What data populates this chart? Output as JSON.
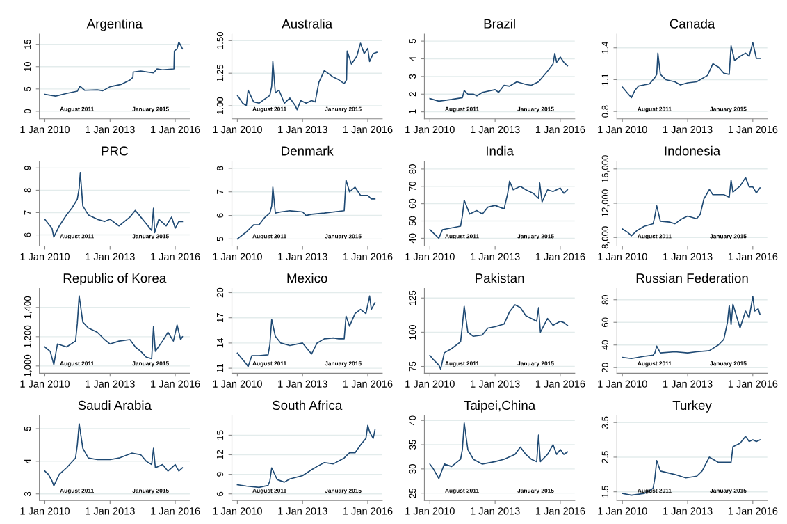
{
  "chart_data": [
    {
      "type": "line",
      "title": "Argentina",
      "color": "#1f4a74",
      "grid": "y",
      "xlim": [
        "2009-10-01",
        "2016-09-01"
      ],
      "xticks": [
        {
          "value": "2010-01-01",
          "label": "1 Jan 2010"
        },
        {
          "value": "2013-01-01",
          "label": "1 Jan 2013"
        },
        {
          "value": "2016-01-01",
          "label": "1 Jan 2016"
        }
      ],
      "ylim": [
        -1.7,
        17.3
      ],
      "yticks": [
        0,
        5,
        10,
        15
      ],
      "annotations": [
        "August 2011",
        "January 2015"
      ],
      "x": [
        "2010-01",
        "2010-07",
        "2011-01",
        "2011-07",
        "2011-08-15",
        "2011-11",
        "2012-06",
        "2012-09",
        "2013-01",
        "2013-07",
        "2013-12",
        "2014-01-20",
        "2014-01-25",
        "2014-06",
        "2015-01",
        "2015-03",
        "2015-06",
        "2015-12-10",
        "2015-12-17",
        "2016-02",
        "2016-03",
        "2016-04",
        "2016-05"
      ],
      "values": [
        3.8,
        3.4,
        4.0,
        4.5,
        5.6,
        4.7,
        4.8,
        4.6,
        5.5,
        6.0,
        7.0,
        7.6,
        8.8,
        9.0,
        8.6,
        9.5,
        9.3,
        9.5,
        13.5,
        14.0,
        15.5,
        14.8,
        14.0
      ]
    },
    {
      "type": "line",
      "title": "Australia",
      "color": "#1f4a74",
      "grid": "y",
      "xlim": [
        "2009-10-01",
        "2016-09-01"
      ],
      "xticks": [
        {
          "value": "2010-01-01",
          "label": "1 Jan 2010"
        },
        {
          "value": "2013-01-01",
          "label": "1 Jan 2013"
        },
        {
          "value": "2016-01-01",
          "label": "1 Jan 2016"
        }
      ],
      "ylim": [
        0.9,
        1.55
      ],
      "yticks": [
        {
          "value": 1.0,
          "label": "1.00"
        },
        {
          "value": 1.25,
          "label": "1.25"
        },
        {
          "value": 1.5,
          "label": "1.50"
        }
      ],
      "annotations": [
        "August 2011",
        "January 2015"
      ],
      "x": [
        "2010-01",
        "2010-04",
        "2010-06",
        "2010-07",
        "2010-10",
        "2011-01",
        "2011-04",
        "2011-07",
        "2011-08",
        "2011-08-20",
        "2011-10",
        "2011-12",
        "2012-03",
        "2012-06",
        "2012-09",
        "2012-10",
        "2012-12",
        "2013-03",
        "2013-06",
        "2013-08",
        "2013-10",
        "2014-01",
        "2014-06",
        "2014-09",
        "2014-12",
        "2015-01-10",
        "2015-01-20",
        "2015-04",
        "2015-07",
        "2015-09",
        "2015-11",
        "2016-01",
        "2016-02",
        "2016-04",
        "2016-06"
      ],
      "values": [
        1.08,
        1.02,
        1.0,
        1.12,
        1.03,
        1.02,
        1.05,
        1.08,
        1.15,
        1.34,
        1.1,
        1.12,
        1.02,
        1.06,
        1.0,
        0.97,
        1.04,
        1.02,
        1.04,
        1.03,
        1.18,
        1.27,
        1.22,
        1.2,
        1.17,
        1.2,
        1.42,
        1.32,
        1.38,
        1.48,
        1.4,
        1.44,
        1.34,
        1.4,
        1.41
      ]
    },
    {
      "type": "line",
      "title": "Brazil",
      "color": "#1f4a74",
      "grid": "y",
      "xlim": [
        "2009-10-01",
        "2016-09-01"
      ],
      "xticks": [
        {
          "value": "2010-01-01",
          "label": "1 Jan 2010"
        },
        {
          "value": "2013-01-01",
          "label": "1 Jan 2013"
        },
        {
          "value": "2016-01-01",
          "label": "1 Jan 2016"
        }
      ],
      "ylim": [
        0.6,
        5.4
      ],
      "yticks": [
        1,
        2,
        3,
        4,
        5
      ],
      "annotations": [
        "August 2011",
        "January 2015"
      ],
      "x": [
        "2010-01",
        "2010-06",
        "2011-01",
        "2011-07",
        "2011-08",
        "2011-10",
        "2012-01",
        "2012-03",
        "2012-06",
        "2013-01",
        "2013-03",
        "2013-06",
        "2013-09",
        "2014-01",
        "2014-06",
        "2014-09",
        "2015-01",
        "2015-06",
        "2015-09",
        "2015-10",
        "2015-11",
        "2016-01",
        "2016-03",
        "2016-05"
      ],
      "values": [
        1.75,
        1.6,
        1.7,
        1.8,
        2.2,
        2.0,
        2.0,
        1.9,
        2.1,
        2.25,
        2.1,
        2.5,
        2.45,
        2.7,
        2.55,
        2.5,
        2.7,
        3.3,
        3.7,
        4.3,
        3.8,
        4.1,
        3.8,
        3.6
      ]
    },
    {
      "type": "line",
      "title": "Canada",
      "color": "#1f4a74",
      "grid": "y",
      "xlim": [
        "2009-10-01",
        "2016-09-01"
      ],
      "xticks": [
        {
          "value": "2010-01-01",
          "label": "1 Jan 2010"
        },
        {
          "value": "2013-01-01",
          "label": "1 Jan 2013"
        },
        {
          "value": "2016-01-01",
          "label": "1 Jan 2016"
        }
      ],
      "ylim": [
        0.73,
        1.53
      ],
      "yticks": [
        0.8,
        1.1,
        1.4
      ],
      "annotations": [
        "August 2011",
        "January 2015"
      ],
      "x": [
        "2010-01",
        "2010-04",
        "2010-06",
        "2010-08",
        "2010-10",
        "2011-01",
        "2011-04",
        "2011-07",
        "2011-08",
        "2011-08-20",
        "2011-10",
        "2012-01",
        "2012-06",
        "2012-09",
        "2013-01",
        "2013-06",
        "2013-12",
        "2014-03",
        "2014-06",
        "2014-09",
        "2014-12",
        "2015-01",
        "2015-03",
        "2015-06",
        "2015-09",
        "2015-11",
        "2016-01",
        "2016-03",
        "2016-05"
      ],
      "values": [
        1.03,
        0.97,
        0.93,
        1.0,
        1.04,
        1.05,
        1.06,
        1.12,
        1.15,
        1.35,
        1.15,
        1.1,
        1.08,
        1.05,
        1.07,
        1.08,
        1.14,
        1.25,
        1.22,
        1.16,
        1.15,
        1.42,
        1.28,
        1.32,
        1.35,
        1.32,
        1.45,
        1.3,
        1.3
      ]
    },
    {
      "type": "line",
      "title": "PRC",
      "color": "#1f4a74",
      "grid": "y",
      "xlim": [
        "2009-10-01",
        "2016-09-01"
      ],
      "xticks": [
        {
          "value": "2010-01-01",
          "label": "1 Jan 2010"
        },
        {
          "value": "2013-01-01",
          "label": "1 Jan 2013"
        },
        {
          "value": "2016-01-01",
          "label": "1 Jan 2016"
        }
      ],
      "ylim": [
        5.5,
        9.3
      ],
      "yticks": [
        6,
        7,
        8,
        9
      ],
      "annotations": [
        "August 2011",
        "January 2015"
      ],
      "x": [
        "2010-01",
        "2010-03",
        "2010-05",
        "2010-06",
        "2010-09",
        "2011-01",
        "2011-04",
        "2011-07",
        "2011-08",
        "2011-08-20",
        "2011-10",
        "2012-01",
        "2012-06",
        "2012-10",
        "2013-01",
        "2013-06",
        "2013-12",
        "2014-03",
        "2014-06",
        "2014-09",
        "2014-12",
        "2015-01",
        "2015-01-20",
        "2015-04",
        "2015-08",
        "2015-11",
        "2016-01",
        "2016-03",
        "2016-05"
      ],
      "values": [
        6.7,
        6.5,
        6.3,
        5.9,
        6.4,
        6.9,
        7.2,
        7.6,
        8.1,
        8.8,
        7.3,
        6.9,
        6.7,
        6.6,
        6.7,
        6.4,
        6.8,
        7.1,
        6.8,
        6.5,
        6.2,
        7.2,
        6.1,
        6.7,
        6.4,
        6.8,
        6.3,
        6.6,
        6.6
      ]
    },
    {
      "type": "line",
      "title": "Denmark",
      "color": "#1f4a74",
      "grid": "y",
      "xlim": [
        "2009-10-01",
        "2016-09-01"
      ],
      "xticks": [
        {
          "value": "2010-01-01",
          "label": "1 Jan 2010"
        },
        {
          "value": "2013-01-01",
          "label": "1 Jan 2013"
        },
        {
          "value": "2016-01-01",
          "label": "1 Jan 2016"
        }
      ],
      "ylim": [
        4.7,
        8.3
      ],
      "yticks": [
        5,
        6,
        7,
        8
      ],
      "annotations": [
        "August 2011",
        "January 2015"
      ],
      "x": [
        "2010-01",
        "2010-06",
        "2010-10",
        "2011-01",
        "2011-04",
        "2011-07",
        "2011-08",
        "2011-08-20",
        "2011-10",
        "2012-01",
        "2012-06",
        "2013-01",
        "2013-03",
        "2013-06",
        "2014-01",
        "2014-12",
        "2015-01",
        "2015-03",
        "2015-06",
        "2015-09",
        "2016-01",
        "2016-03",
        "2016-05"
      ],
      "values": [
        5.0,
        5.3,
        5.6,
        5.6,
        5.9,
        6.1,
        6.4,
        7.2,
        6.1,
        6.15,
        6.2,
        6.15,
        6.0,
        6.05,
        6.1,
        6.2,
        7.5,
        7.0,
        7.2,
        6.85,
        6.85,
        6.7,
        6.7
      ]
    },
    {
      "type": "line",
      "title": "India",
      "color": "#1f4a74",
      "grid": "y",
      "xlim": [
        "2009-10-01",
        "2016-09-01"
      ],
      "xticks": [
        {
          "value": "2010-01-01",
          "label": "1 Jan 2010"
        },
        {
          "value": "2013-01-01",
          "label": "1 Jan 2013"
        },
        {
          "value": "2016-01-01",
          "label": "1 Jan 2016"
        }
      ],
      "ylim": [
        35.5,
        84.5
      ],
      "yticks": [
        40,
        50,
        60,
        70,
        80
      ],
      "annotations": [
        "August 2011",
        "January 2015"
      ],
      "x": [
        "2010-01",
        "2010-04",
        "2010-06",
        "2010-08",
        "2011-01",
        "2011-06",
        "2011-07",
        "2011-08",
        "2011-11",
        "2012-03",
        "2012-06",
        "2012-09",
        "2013-01",
        "2013-06",
        "2013-08",
        "2013-09",
        "2013-11",
        "2014-03",
        "2014-06",
        "2014-10",
        "2015-01",
        "2015-01-20",
        "2015-03",
        "2015-06",
        "2015-09",
        "2016-01",
        "2016-03",
        "2016-05"
      ],
      "values": [
        45,
        42,
        40,
        45,
        46,
        47,
        53,
        62,
        54,
        56,
        54,
        58,
        59,
        57,
        66,
        73,
        68,
        70,
        68,
        66,
        63,
        72,
        61,
        68,
        67,
        69,
        66,
        68
      ]
    },
    {
      "type": "line",
      "title": "Indonesia",
      "color": "#1f4a74",
      "grid": "y",
      "xlim": [
        "2009-10-01",
        "2016-09-01"
      ],
      "xticks": [
        {
          "value": "2010-01-01",
          "label": "1 Jan 2010"
        },
        {
          "value": "2013-01-01",
          "label": "1 Jan 2013"
        },
        {
          "value": "2016-01-01",
          "label": "1 Jan 2016"
        }
      ],
      "ylim": [
        7000,
        16900
      ],
      "yticks": [
        {
          "value": 8000,
          "label": "8,000"
        },
        {
          "value": 12000,
          "label": "12,000"
        },
        {
          "value": 16000,
          "label": "16,000"
        }
      ],
      "annotations": [
        "August 2011",
        "January 2015"
      ],
      "x": [
        "2010-01",
        "2010-04",
        "2010-06",
        "2010-09",
        "2011-01",
        "2011-06",
        "2011-07",
        "2011-08",
        "2011-10",
        "2012-03",
        "2012-06",
        "2012-10",
        "2013-01",
        "2013-06",
        "2013-08",
        "2013-10",
        "2014-01",
        "2014-03",
        "2014-09",
        "2014-12",
        "2015-01",
        "2015-02",
        "2015-06",
        "2015-09",
        "2015-11",
        "2016-01",
        "2016-03",
        "2016-05"
      ],
      "values": [
        9000,
        8600,
        8200,
        8800,
        9300,
        9600,
        10500,
        11700,
        9900,
        9800,
        9600,
        10200,
        10500,
        10200,
        10700,
        12500,
        13600,
        13000,
        13000,
        12700,
        14700,
        13300,
        14000,
        15000,
        13900,
        13900,
        13200,
        13800
      ]
    },
    {
      "type": "line",
      "title": "Republic of Korea",
      "color": "#1f4a74",
      "grid": "y",
      "xlim": [
        "2009-10-01",
        "2016-09-01"
      ],
      "xticks": [
        {
          "value": "2010-01-01",
          "label": "1 Jan 2010"
        },
        {
          "value": "2013-01-01",
          "label": "1 Jan 2013"
        },
        {
          "value": "2016-01-01",
          "label": "1 Jan 2016"
        }
      ],
      "ylim": [
        950,
        1530
      ],
      "yticks": [
        {
          "value": 1000,
          "label": "1,000"
        },
        {
          "value": 1200,
          "label": "1,200"
        },
        {
          "value": 1400,
          "label": "1,400"
        }
      ],
      "annotations": [
        "August 2011",
        "January 2015"
      ],
      "x": [
        "2010-01",
        "2010-04",
        "2010-06",
        "2010-08",
        "2011-01",
        "2011-06",
        "2011-07",
        "2011-08",
        "2011-10",
        "2012-01",
        "2012-06",
        "2012-10",
        "2013-01",
        "2013-06",
        "2013-12",
        "2014-03",
        "2014-06",
        "2014-09",
        "2014-12",
        "2015-01",
        "2015-02",
        "2015-06",
        "2015-09",
        "2015-12",
        "2016-02",
        "2016-04",
        "2016-05"
      ],
      "values": [
        1130,
        1100,
        1010,
        1150,
        1130,
        1170,
        1290,
        1480,
        1300,
        1260,
        1230,
        1180,
        1150,
        1170,
        1180,
        1130,
        1100,
        1060,
        1050,
        1270,
        1100,
        1170,
        1230,
        1170,
        1280,
        1180,
        1200
      ]
    },
    {
      "type": "line",
      "title": "Mexico",
      "color": "#1f4a74",
      "grid": "y",
      "xlim": [
        "2009-10-01",
        "2016-09-01"
      ],
      "xticks": [
        {
          "value": "2010-01-01",
          "label": "1 Jan 2010"
        },
        {
          "value": "2013-01-01",
          "label": "1 Jan 2013"
        },
        {
          "value": "2016-01-01",
          "label": "1 Jan 2016"
        }
      ],
      "ylim": [
        10.4,
        20.5
      ],
      "yticks": [
        11,
        14,
        17,
        20
      ],
      "annotations": [
        "August 2011",
        "January 2015"
      ],
      "x": [
        "2010-01",
        "2010-03",
        "2010-06",
        "2010-07",
        "2010-09",
        "2011-01",
        "2011-06",
        "2011-07",
        "2011-08",
        "2011-10",
        "2012-01",
        "2012-06",
        "2013-01",
        "2013-04",
        "2013-06",
        "2013-09",
        "2014-01",
        "2014-06",
        "2014-09",
        "2014-12",
        "2015-01",
        "2015-03",
        "2015-06",
        "2015-09",
        "2015-12",
        "2016-02",
        "2016-03",
        "2016-05"
      ],
      "values": [
        12.8,
        12.3,
        11.5,
        11.2,
        12.5,
        12.5,
        12.6,
        13.8,
        16.8,
        14.8,
        14.0,
        13.7,
        14.0,
        13.2,
        12.7,
        14.0,
        14.5,
        14.6,
        14.5,
        14.5,
        17.2,
        16.0,
        17.5,
        18.0,
        17.5,
        19.6,
        18.0,
        18.8
      ]
    },
    {
      "type": "line",
      "title": "Pakistan",
      "color": "#1f4a74",
      "grid": "y",
      "xlim": [
        "2009-10-01",
        "2016-09-01"
      ],
      "xticks": [
        {
          "value": "2010-01-01",
          "label": "1 Jan 2010"
        },
        {
          "value": "2013-01-01",
          "label": "1 Jan 2013"
        },
        {
          "value": "2016-01-01",
          "label": "1 Jan 2016"
        }
      ],
      "ylim": [
        70,
        132
      ],
      "yticks": [
        75,
        100,
        125
      ],
      "annotations": [
        "August 2011",
        "January 2015"
      ],
      "x": [
        "2010-01",
        "2010-03",
        "2010-06",
        "2010-07",
        "2010-09",
        "2011-01",
        "2011-06",
        "2011-07",
        "2011-08",
        "2011-10",
        "2012-01",
        "2012-06",
        "2012-09",
        "2013-01",
        "2013-06",
        "2013-09",
        "2013-12",
        "2014-03",
        "2014-06",
        "2014-09",
        "2014-12",
        "2015-01",
        "2015-02",
        "2015-06",
        "2015-09",
        "2016-01",
        "2016-03",
        "2016-05"
      ],
      "values": [
        83,
        80,
        76,
        73,
        85,
        88,
        93,
        105,
        119,
        100,
        97,
        98,
        103,
        104,
        106,
        115,
        120,
        118,
        112,
        110,
        108,
        118,
        100,
        110,
        105,
        108,
        107,
        105
      ]
    },
    {
      "type": "line",
      "title": "Russian Federation",
      "color": "#1f4a74",
      "grid": "y",
      "xlim": [
        "2009-10-01",
        "2016-09-01"
      ],
      "xticks": [
        {
          "value": "2010-01-01",
          "label": "1 Jan 2010"
        },
        {
          "value": "2013-01-01",
          "label": "1 Jan 2013"
        },
        {
          "value": "2016-01-01",
          "label": "1 Jan 2016"
        }
      ],
      "ylim": [
        15,
        90
      ],
      "yticks": [
        20,
        40,
        60,
        80
      ],
      "annotations": [
        "August 2011",
        "January 2015"
      ],
      "x": [
        "2010-01",
        "2010-06",
        "2011-01",
        "2011-06",
        "2011-07",
        "2011-08",
        "2011-10",
        "2012-06",
        "2013-01",
        "2013-06",
        "2014-01",
        "2014-06",
        "2014-09",
        "2014-11",
        "2014-12",
        "2015-01",
        "2015-02",
        "2015-06",
        "2015-09",
        "2015-11",
        "2016-01",
        "2016-02",
        "2016-04",
        "2016-05"
      ],
      "values": [
        29,
        28,
        30,
        31,
        33,
        39,
        33,
        34,
        33,
        34,
        35,
        40,
        45,
        60,
        75,
        58,
        76,
        55,
        70,
        64,
        83,
        70,
        72,
        67
      ]
    },
    {
      "type": "line",
      "title": "Saudi Arabia",
      "color": "#1f4a74",
      "grid": "y",
      "xlim": [
        "2009-10-01",
        "2016-09-01"
      ],
      "xticks": [
        {
          "value": "2010-01-01",
          "label": "1 Jan 2010"
        },
        {
          "value": "2013-01-01",
          "label": "1 Jan 2013"
        },
        {
          "value": "2016-01-01",
          "label": "1 Jan 2016"
        }
      ],
      "ylim": [
        2.8,
        5.4
      ],
      "yticks": [
        3,
        4,
        5
      ],
      "annotations": [
        "August 2011",
        "January 2015"
      ],
      "x": [
        "2010-01",
        "2010-03",
        "2010-05",
        "2010-06",
        "2010-09",
        "2011-01",
        "2011-06",
        "2011-07",
        "2011-08",
        "2011-10",
        "2012-01",
        "2012-06",
        "2013-01",
        "2013-06",
        "2014-01",
        "2014-06",
        "2014-09",
        "2014-12",
        "2015-01",
        "2015-02",
        "2015-06",
        "2015-09",
        "2016-01",
        "2016-03",
        "2016-05"
      ],
      "values": [
        3.7,
        3.6,
        3.4,
        3.25,
        3.6,
        3.8,
        4.1,
        4.5,
        5.15,
        4.4,
        4.1,
        4.05,
        4.05,
        4.1,
        4.25,
        4.2,
        4.0,
        3.9,
        4.4,
        3.8,
        3.9,
        3.7,
        3.9,
        3.7,
        3.8
      ]
    },
    {
      "type": "line",
      "title": "South Africa",
      "color": "#1f4a74",
      "grid": "y",
      "xlim": [
        "2009-10-01",
        "2016-09-01"
      ],
      "xticks": [
        {
          "value": "2010-01-01",
          "label": "1 Jan 2010"
        },
        {
          "value": "2013-01-01",
          "label": "1 Jan 2013"
        },
        {
          "value": "2016-01-01",
          "label": "1 Jan 2016"
        }
      ],
      "ylim": [
        5,
        18
      ],
      "yticks": [
        6,
        9,
        12,
        15
      ],
      "annotations": [
        "August 2011",
        "January 2015"
      ],
      "x": [
        "2010-01",
        "2010-06",
        "2011-01",
        "2011-06",
        "2011-07",
        "2011-08",
        "2011-11",
        "2012-03",
        "2012-06",
        "2013-01",
        "2013-06",
        "2013-09",
        "2014-01",
        "2014-06",
        "2014-12",
        "2015-01",
        "2015-03",
        "2015-06",
        "2015-09",
        "2015-12",
        "2016-01",
        "2016-02",
        "2016-04",
        "2016-05"
      ],
      "values": [
        7.4,
        7.2,
        7.0,
        7.3,
        8.0,
        10.0,
        8.2,
        7.8,
        8.3,
        8.8,
        9.7,
        10.2,
        10.8,
        10.6,
        11.5,
        11.8,
        12.3,
        12.3,
        13.5,
        14.5,
        16.5,
        15.5,
        14.5,
        15.8
      ]
    },
    {
      "type": "line",
      "title": "Taipei,China",
      "color": "#1f4a74",
      "grid": "y",
      "xlim": [
        "2009-10-01",
        "2016-09-01"
      ],
      "xticks": [
        {
          "value": "2010-01-01",
          "label": "1 Jan 2010"
        },
        {
          "value": "2013-01-01",
          "label": "1 Jan 2013"
        },
        {
          "value": "2016-01-01",
          "label": "1 Jan 2016"
        }
      ],
      "ylim": [
        23.5,
        41
      ],
      "yticks": [
        25,
        30,
        35,
        40
      ],
      "annotations": [
        "August 2011",
        "January 2015"
      ],
      "x": [
        "2010-01",
        "2010-03",
        "2010-06",
        "2010-09",
        "2011-01",
        "2011-06",
        "2011-07",
        "2011-08",
        "2011-10",
        "2012-01",
        "2012-06",
        "2013-01",
        "2013-06",
        "2013-12",
        "2014-03",
        "2014-06",
        "2014-09",
        "2014-12",
        "2015-01",
        "2015-02",
        "2015-06",
        "2015-09",
        "2015-11",
        "2016-01",
        "2016-03",
        "2016-05"
      ],
      "values": [
        31,
        30,
        28,
        31,
        30.5,
        32,
        34,
        39.5,
        34,
        32,
        31,
        31.5,
        32,
        33,
        34.5,
        33,
        32,
        31.5,
        37,
        31.5,
        33,
        35,
        33,
        34,
        33,
        33.5
      ]
    },
    {
      "type": "line",
      "title": "Turkey",
      "color": "#1f4a74",
      "grid": "y",
      "xlim": [
        "2009-10-01",
        "2016-09-01"
      ],
      "xticks": [
        {
          "value": "2010-01-01",
          "label": "1 Jan 2010"
        },
        {
          "value": "2013-01-01",
          "label": "1 Jan 2013"
        },
        {
          "value": "2016-01-01",
          "label": "1 Jan 2016"
        }
      ],
      "ylim": [
        1.25,
        3.7
      ],
      "yticks": [
        1.5,
        2.5,
        3.5
      ],
      "annotations": [
        "August 2011",
        "January 2015"
      ],
      "x": [
        "2010-01",
        "2010-06",
        "2011-01",
        "2011-06",
        "2011-07",
        "2011-08",
        "2011-10",
        "2012-06",
        "2012-12",
        "2013-06",
        "2013-09",
        "2014-01",
        "2014-06",
        "2014-12",
        "2015-01",
        "2015-02",
        "2015-06",
        "2015-09",
        "2015-11",
        "2016-01",
        "2016-03",
        "2016-05"
      ],
      "values": [
        1.45,
        1.4,
        1.45,
        1.6,
        1.9,
        2.4,
        2.1,
        2.0,
        1.9,
        1.95,
        2.1,
        2.5,
        2.35,
        2.35,
        2.35,
        2.8,
        2.9,
        3.1,
        2.95,
        3.0,
        2.95,
        3.0
      ]
    }
  ]
}
